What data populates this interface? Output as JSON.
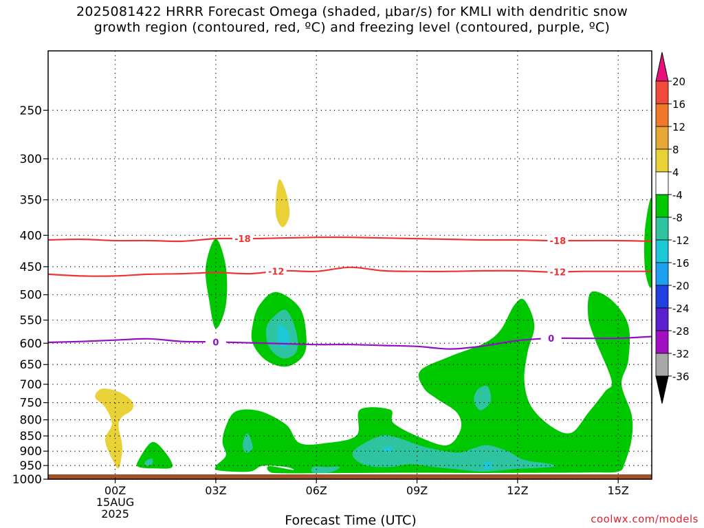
{
  "title": {
    "line1": "2025081422 HRRR Forecast Omega (shaded, μbar/s) for KMLI with dendritic snow",
    "line2": "growth region (contoured, red, ºC) and freezing level (contoured, purple, ºC)"
  },
  "credit": "coolwx.com/models",
  "chart_data": {
    "type": "time-height cross-section",
    "xlabel": "Forecast Time (UTC)",
    "ylabel": "",
    "x_ticks": [
      {
        "hour": 0,
        "lines": [
          "00Z",
          "15AUG",
          "2025"
        ]
      },
      {
        "hour": 3,
        "lines": [
          "03Z"
        ]
      },
      {
        "hour": 6,
        "lines": [
          "06Z"
        ]
      },
      {
        "hour": 9,
        "lines": [
          "09Z"
        ]
      },
      {
        "hour": 12,
        "lines": [
          "12Z"
        ]
      },
      {
        "hour": 15,
        "lines": [
          "15Z"
        ]
      }
    ],
    "xlim_hours": [
      -2,
      16
    ],
    "y_ticks_hpa": [
      250,
      300,
      350,
      400,
      450,
      500,
      550,
      600,
      650,
      700,
      750,
      800,
      850,
      900,
      950,
      1000
    ],
    "ylim_hpa": [
      200,
      1000
    ],
    "grid": true,
    "colorbar": {
      "levels": [
        {
          "label": "20",
          "color": "#e8117a"
        },
        {
          "label": "16",
          "color": "#f04a3c"
        },
        {
          "label": "12",
          "color": "#f07a2a"
        },
        {
          "label": "8",
          "color": "#e8a634"
        },
        {
          "label": "4",
          "color": "#e8d238"
        },
        {
          "label": "-4",
          "color": "#ffffff"
        },
        {
          "label": "-8",
          "color": "#00c800"
        },
        {
          "label": "-12",
          "color": "#2ec4a0"
        },
        {
          "label": "-16",
          "color": "#1cc8d8"
        },
        {
          "label": "-20",
          "color": "#1ea0f0"
        },
        {
          "label": "-24",
          "color": "#2040e0"
        },
        {
          "label": "-28",
          "color": "#5a20d0"
        },
        {
          "label": "-32",
          "color": "#a010c0"
        },
        {
          "label": "-36",
          "color": "#a8a8a8"
        }
      ],
      "below_color": "#000000"
    },
    "contours": [
      {
        "label": "-18",
        "color": "#ee3333",
        "points": [
          [
            -2,
            407
          ],
          [
            -1,
            406
          ],
          [
            0,
            408
          ],
          [
            1,
            408
          ],
          [
            2,
            409
          ],
          [
            3,
            405
          ],
          [
            4,
            405
          ],
          [
            5,
            404
          ],
          [
            6,
            403
          ],
          [
            7,
            403
          ],
          [
            8,
            404
          ],
          [
            9,
            405
          ],
          [
            10,
            406
          ],
          [
            11,
            407
          ],
          [
            12,
            407
          ],
          [
            13,
            408
          ],
          [
            14,
            408
          ],
          [
            15,
            408
          ],
          [
            16,
            409
          ]
        ],
        "label_hours": [
          3.8,
          13.2
        ]
      },
      {
        "label": "-12",
        "color": "#ee3333",
        "points": [
          [
            -2,
            463
          ],
          [
            -1,
            466
          ],
          [
            0,
            466
          ],
          [
            1,
            463
          ],
          [
            2,
            462
          ],
          [
            3,
            460
          ],
          [
            4,
            462
          ],
          [
            5,
            457
          ],
          [
            6,
            458
          ],
          [
            7,
            451
          ],
          [
            8,
            457
          ],
          [
            9,
            458
          ],
          [
            10,
            458
          ],
          [
            11,
            457
          ],
          [
            12,
            457
          ],
          [
            13,
            459
          ],
          [
            14,
            458
          ],
          [
            15,
            458
          ],
          [
            16,
            458
          ]
        ],
        "label_hours": [
          4.8,
          13.2
        ]
      },
      {
        "label": "0",
        "color": "#9010c0",
        "points": [
          [
            -2,
            598
          ],
          [
            -1,
            596
          ],
          [
            0,
            593
          ],
          [
            1,
            590
          ],
          [
            2,
            596
          ],
          [
            3,
            597
          ],
          [
            4,
            599
          ],
          [
            5,
            601
          ],
          [
            6,
            603
          ],
          [
            7,
            603
          ],
          [
            8,
            605
          ],
          [
            9,
            607
          ],
          [
            10,
            613
          ],
          [
            11,
            606
          ],
          [
            12,
            594
          ],
          [
            13,
            589
          ],
          [
            14,
            589
          ],
          [
            15,
            589
          ],
          [
            16,
            585
          ]
        ],
        "label_hours": [
          3,
          13
        ]
      }
    ],
    "omega_regions": [
      {
        "value_band": "4 to 8",
        "color": "#e8d238",
        "points": [
          [
            -0.4,
            712
          ],
          [
            0.1,
            720
          ],
          [
            0.5,
            746
          ],
          [
            0.5,
            771
          ],
          [
            0.2,
            792
          ],
          [
            0.1,
            818
          ],
          [
            0.2,
            873
          ],
          [
            0.2,
            910
          ],
          [
            0.1,
            960
          ],
          [
            -0.1,
            925
          ],
          [
            -0.3,
            862
          ],
          [
            -0.1,
            812
          ],
          [
            -0.3,
            763
          ],
          [
            -0.6,
            735
          ]
        ]
      },
      {
        "value_band": "4 to 8",
        "color": "#e8d238",
        "points": [
          [
            4.9,
            324
          ],
          [
            5.1,
            341
          ],
          [
            5.2,
            370
          ],
          [
            5.0,
            388
          ],
          [
            4.8,
            372
          ],
          [
            4.8,
            343
          ]
        ]
      },
      {
        "value_band": "-4 to -8",
        "color": "#00c800",
        "points": [
          [
            0.7,
            930
          ],
          [
            1.1,
            870
          ],
          [
            1.5,
            905
          ],
          [
            1.7,
            955
          ],
          [
            1.2,
            960
          ],
          [
            0.7,
            955
          ]
        ]
      },
      {
        "value_band": "-4 to -8",
        "color": "#00c800",
        "points": [
          [
            3,
            405
          ],
          [
            3.3,
            450
          ],
          [
            3.3,
            520
          ],
          [
            3,
            568
          ],
          [
            2.8,
            510
          ],
          [
            2.7,
            450
          ]
        ]
      },
      {
        "value_band": "-4 to -8",
        "color": "#00c800",
        "points": [
          [
            4.8,
            495
          ],
          [
            5.5,
            525
          ],
          [
            5.7,
            585
          ],
          [
            5.6,
            630
          ],
          [
            5.1,
            655
          ],
          [
            4.5,
            640
          ],
          [
            4.1,
            600
          ],
          [
            4.1,
            560
          ],
          [
            4.3,
            520
          ]
        ]
      },
      {
        "value_band": "-4 to -8",
        "color": "#00c800",
        "points": [
          [
            16,
            350
          ],
          [
            16,
            480
          ],
          [
            15.8,
            455
          ],
          [
            15.8,
            390
          ]
        ]
      },
      {
        "value_band": "-4 to -8",
        "color": "#00c800",
        "points": [
          [
            3.6,
            775
          ],
          [
            4.3,
            774
          ],
          [
            5.1,
            815
          ],
          [
            5.5,
            873
          ],
          [
            6.3,
            873
          ],
          [
            7.2,
            848
          ],
          [
            7.3,
            770
          ],
          [
            8.2,
            770
          ],
          [
            8.3,
            810
          ],
          [
            9.1,
            855
          ],
          [
            9.9,
            880
          ],
          [
            10.3,
            830
          ],
          [
            10.2,
            780
          ],
          [
            9.6,
            740
          ],
          [
            9.2,
            710
          ],
          [
            9.1,
            665
          ],
          [
            10,
            630
          ],
          [
            11,
            600
          ],
          [
            11.5,
            570
          ],
          [
            11.9,
            520
          ],
          [
            12.2,
            510
          ],
          [
            12.5,
            560
          ],
          [
            12.3,
            620
          ],
          [
            12.2,
            690
          ],
          [
            12.4,
            760
          ],
          [
            13.0,
            820
          ],
          [
            13.6,
            840
          ],
          [
            14.1,
            780
          ],
          [
            14.6,
            720
          ],
          [
            14.8,
            690
          ],
          [
            14.3,
            590
          ],
          [
            14.1,
            540
          ],
          [
            14.2,
            495
          ],
          [
            14.8,
            510
          ],
          [
            15.3,
            560
          ],
          [
            15.3,
            640
          ],
          [
            15.1,
            700
          ],
          [
            15.4,
            785
          ],
          [
            15.4,
            860
          ],
          [
            15.2,
            940
          ],
          [
            15.0,
            972
          ],
          [
            14.2,
            975
          ],
          [
            13,
            976
          ],
          [
            11,
            977
          ],
          [
            9,
            976
          ],
          [
            7,
            977
          ],
          [
            5,
            978
          ],
          [
            4.6,
            972
          ],
          [
            4.6,
            952
          ],
          [
            5.3,
            966
          ],
          [
            5.1,
            955
          ],
          [
            4.4,
            951
          ],
          [
            4.0,
            972
          ],
          [
            3.1,
            968
          ],
          [
            3.0,
            952
          ],
          [
            3.3,
            915
          ],
          [
            3.2,
            870
          ],
          [
            3.3,
            820
          ]
        ]
      },
      {
        "value_band": "-8 to -12",
        "color": "#2ec4a0",
        "points": [
          [
            4.7,
            545
          ],
          [
            5.1,
            530
          ],
          [
            5.4,
            575
          ],
          [
            5.4,
            620
          ],
          [
            5.0,
            635
          ],
          [
            4.6,
            610
          ],
          [
            4.5,
            570
          ]
        ]
      },
      {
        "value_band": "-8 to -12",
        "color": "#2ec4a0",
        "points": [
          [
            3.9,
            845
          ],
          [
            4.0,
            850
          ],
          [
            4.1,
            890
          ],
          [
            3.9,
            905
          ],
          [
            3.8,
            880
          ]
        ]
      },
      {
        "value_band": "-8 to -12",
        "color": "#2ec4a0",
        "points": [
          [
            0.9,
            935
          ],
          [
            1.1,
            925
          ],
          [
            1.1,
            945
          ],
          [
            0.9,
            950
          ]
        ]
      },
      {
        "value_band": "-8 to -12",
        "color": "#2ec4a0",
        "points": [
          [
            5.9,
            975
          ],
          [
            5.9,
            955
          ],
          [
            6.3,
            955
          ],
          [
            6.7,
            955
          ],
          [
            6.4,
            975
          ]
        ]
      },
      {
        "value_band": "-8 to -12",
        "color": "#2ec4a0",
        "points": [
          [
            7.2,
            890
          ],
          [
            7.9,
            850
          ],
          [
            8.4,
            855
          ],
          [
            9.2,
            885
          ],
          [
            10.2,
            905
          ],
          [
            10.7,
            890
          ],
          [
            11.1,
            880
          ],
          [
            11.7,
            900
          ],
          [
            12.2,
            930
          ],
          [
            13.0,
            945
          ],
          [
            13.0,
            955
          ],
          [
            12.0,
            962
          ],
          [
            11.0,
            972
          ],
          [
            10.3,
            965
          ],
          [
            9.5,
            955
          ],
          [
            8.8,
            945
          ],
          [
            8.2,
            955
          ],
          [
            7.5,
            950
          ],
          [
            7.1,
            920
          ]
        ]
      },
      {
        "value_band": "-8 to -12",
        "color": "#2ec4a0",
        "points": [
          [
            10.8,
            715
          ],
          [
            11.1,
            705
          ],
          [
            11.2,
            745
          ],
          [
            10.9,
            772
          ],
          [
            10.7,
            745
          ]
        ]
      },
      {
        "value_band": "-12 to -16",
        "color": "#1cc8d8",
        "points": [
          [
            4.9,
            560
          ],
          [
            5.2,
            580
          ],
          [
            5.1,
            610
          ],
          [
            4.85,
            595
          ]
        ]
      },
      {
        "value_band": "-12 to -16",
        "color": "#1cc8d8",
        "points": [
          [
            8.0,
            890
          ],
          [
            8.2,
            885
          ],
          [
            8.3,
            895
          ],
          [
            8.05,
            900
          ]
        ]
      },
      {
        "value_band": "-12 to -16",
        "color": "#1cc8d8",
        "points": [
          [
            11.0,
            940
          ],
          [
            11.2,
            935
          ],
          [
            11.2,
            960
          ],
          [
            11.0,
            962
          ]
        ]
      }
    ],
    "ground": {
      "pressure_hpa": 982,
      "color": "#a0522d"
    }
  }
}
